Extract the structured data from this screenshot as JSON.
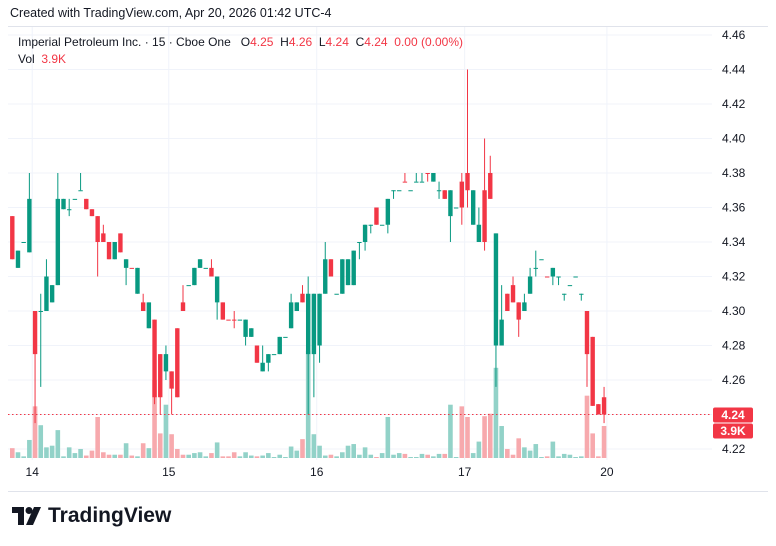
{
  "header": {
    "created": "Created with TradingView.com, Apr 20, 2026 01:42 UTC-4"
  },
  "legend": {
    "symbol": "Imperial Petroleum Inc. · 15 · Cboe One",
    "o_label": "O",
    "o": "4.25",
    "h_label": "H",
    "h": "4.26",
    "l_label": "L",
    "l": "4.24",
    "c_label": "C",
    "c": "4.24",
    "change": "0.00 (0.00%)",
    "vol_label": "Vol",
    "vol": "3.9K"
  },
  "price_axis": [
    "4.46",
    "4.44",
    "4.42",
    "4.40",
    "4.38",
    "4.36",
    "4.34",
    "4.32",
    "4.30",
    "4.28",
    "4.26",
    "4.24",
    "4.22"
  ],
  "last_price_label": "4.24",
  "last_volume_label": "3.9K",
  "time_axis": [
    {
      "label": "14",
      "index": 4
    },
    {
      "label": "15",
      "index": 28
    },
    {
      "label": "16",
      "index": 54
    },
    {
      "label": "17",
      "index": 80
    },
    {
      "label": "20",
      "index": 105
    }
  ],
  "brand": "TradingView",
  "colors": {
    "up": "#089981",
    "down": "#f23645",
    "up_vol": "#92d2c8",
    "down_vol": "#f7a9ad"
  },
  "chart_data": {
    "type": "candlestick",
    "interval": "15",
    "ylim": [
      4.22,
      4.46
    ],
    "last_price": 4.24,
    "dir": "duuuduuuuuuuudddddududududduddduuuududdduuuduuuuuuuduuuuduuuuuuuduuuuduuuduuduudduudduuddduuuuduuuuuudddd",
    "ohlc": [
      [
        4.355,
        4.355,
        4.33,
        4.33
      ],
      [
        4.325,
        4.335,
        4.325,
        4.335
      ],
      [
        4.34,
        4.34,
        4.34,
        4.34
      ],
      [
        4.334,
        4.38,
        4.334,
        4.365
      ],
      [
        4.3,
        4.3,
        4.235,
        4.275
      ],
      [
        4.3,
        4.31,
        4.256,
        4.3
      ],
      [
        4.3,
        4.33,
        4.3,
        4.32
      ],
      [
        4.305,
        4.315,
        4.305,
        4.315
      ],
      [
        4.315,
        4.38,
        4.315,
        4.365
      ],
      [
        4.359,
        4.365,
        4.359,
        4.365
      ],
      [
        4.359,
        4.365,
        4.355,
        4.359
      ],
      [
        4.365,
        4.365,
        4.365,
        4.365
      ],
      [
        4.37,
        4.38,
        4.37,
        4.37
      ],
      [
        4.365,
        4.365,
        4.359,
        4.359
      ],
      [
        4.359,
        4.359,
        4.355,
        4.355
      ],
      [
        4.355,
        4.355,
        4.32,
        4.34
      ],
      [
        4.345,
        4.35,
        4.34,
        4.34
      ],
      [
        4.34,
        4.34,
        4.33,
        4.33
      ],
      [
        4.33,
        4.34,
        4.33,
        4.34
      ],
      [
        4.345,
        4.345,
        4.334,
        4.334
      ],
      [
        4.33,
        4.33,
        4.315,
        4.325
      ],
      [
        4.325,
        4.325,
        4.325,
        4.325
      ],
      [
        4.325,
        4.325,
        4.31,
        4.31
      ],
      [
        4.3,
        4.31,
        4.3,
        4.305
      ],
      [
        4.305,
        4.305,
        4.29,
        4.29
      ],
      [
        4.295,
        4.295,
        4.246,
        4.25
      ],
      [
        4.25,
        4.275,
        4.24,
        4.275
      ],
      [
        4.275,
        4.28,
        4.26,
        4.265
      ],
      [
        4.265,
        4.265,
        4.24,
        4.255
      ],
      [
        4.25,
        4.29,
        4.25,
        4.29
      ],
      [
        4.3,
        4.315,
        4.3,
        4.305
      ],
      [
        4.315,
        4.315,
        4.315,
        4.315
      ],
      [
        4.315,
        4.325,
        4.315,
        4.325
      ],
      [
        4.33,
        4.33,
        4.325,
        4.325
      ],
      [
        4.325,
        4.325,
        4.325,
        4.325
      ],
      [
        4.325,
        4.33,
        4.32,
        4.32
      ],
      [
        4.32,
        4.32,
        4.295,
        4.305
      ],
      [
        4.305,
        4.305,
        4.295,
        4.295
      ],
      [
        4.295,
        4.295,
        4.295,
        4.295
      ],
      [
        4.295,
        4.3,
        4.29,
        4.295
      ],
      [
        4.295,
        4.295,
        4.295,
        4.295
      ],
      [
        4.295,
        4.295,
        4.28,
        4.285
      ],
      [
        4.285,
        4.29,
        4.285,
        4.29
      ],
      [
        4.28,
        4.28,
        4.27,
        4.27
      ],
      [
        4.265,
        4.28,
        4.265,
        4.27
      ],
      [
        4.27,
        4.275,
        4.265,
        4.275
      ],
      [
        4.275,
        4.275,
        4.275,
        4.275
      ],
      [
        4.275,
        4.285,
        4.275,
        4.285
      ],
      [
        4.285,
        4.285,
        4.285,
        4.285
      ],
      [
        4.29,
        4.31,
        4.29,
        4.305
      ],
      [
        4.305,
        4.305,
        4.3,
        4.3
      ],
      [
        4.305,
        4.315,
        4.305,
        4.31
      ],
      [
        4.31,
        4.32,
        4.24,
        4.275
      ],
      [
        4.275,
        4.31,
        4.25,
        4.31
      ],
      [
        4.28,
        4.31,
        4.27,
        4.31
      ],
      [
        4.31,
        4.34,
        4.31,
        4.33
      ],
      [
        4.33,
        4.33,
        4.32,
        4.32
      ],
      [
        4.31,
        4.31,
        4.31,
        4.31
      ],
      [
        4.31,
        4.33,
        4.31,
        4.33
      ],
      [
        4.33,
        4.33,
        4.315,
        4.315
      ],
      [
        4.315,
        4.335,
        4.315,
        4.335
      ],
      [
        4.34,
        4.34,
        4.33,
        4.34
      ],
      [
        4.34,
        4.35,
        4.335,
        4.35
      ],
      [
        4.35,
        4.35,
        4.345,
        4.35
      ],
      [
        4.35,
        4.36,
        4.35,
        4.36
      ],
      [
        4.35,
        4.35,
        4.35,
        4.35
      ],
      [
        4.35,
        4.365,
        4.345,
        4.365
      ],
      [
        4.37,
        4.37,
        4.365,
        4.37
      ],
      [
        4.37,
        4.37,
        4.37,
        4.37
      ],
      [
        4.375,
        4.38,
        4.375,
        4.375
      ],
      [
        4.37,
        4.37,
        4.37,
        4.37
      ],
      [
        4.375,
        4.38,
        4.375,
        4.375
      ],
      [
        4.375,
        4.38,
        4.375,
        4.375
      ],
      [
        4.38,
        4.38,
        4.375,
        4.38
      ],
      [
        4.38,
        4.38,
        4.375,
        4.375
      ],
      [
        4.37,
        4.375,
        4.365,
        4.37
      ],
      [
        4.365,
        4.37,
        4.365,
        4.37
      ],
      [
        4.37,
        4.37,
        4.34,
        4.355
      ],
      [
        4.36,
        4.36,
        4.36,
        4.36
      ],
      [
        4.36,
        4.38,
        4.35,
        4.375
      ],
      [
        4.38,
        4.44,
        4.36,
        4.37
      ],
      [
        4.37,
        4.37,
        4.35,
        4.35
      ],
      [
        4.34,
        4.36,
        4.34,
        4.35
      ],
      [
        4.34,
        4.4,
        4.335,
        4.37
      ],
      [
        4.38,
        4.39,
        4.365,
        4.365
      ],
      [
        4.345,
        4.345,
        4.256,
        4.28
      ],
      [
        4.28,
        4.315,
        4.28,
        4.295
      ],
      [
        4.3,
        4.31,
        4.3,
        4.31
      ],
      [
        4.315,
        4.32,
        4.305,
        4.305
      ],
      [
        4.305,
        4.305,
        4.285,
        4.295
      ],
      [
        4.3,
        4.31,
        4.3,
        4.305
      ],
      [
        4.31,
        4.325,
        4.31,
        4.32
      ],
      [
        4.325,
        4.335,
        4.32,
        4.325
      ],
      [
        4.33,
        4.33,
        4.33,
        4.33
      ],
      [
        4.32,
        4.32,
        4.32,
        4.32
      ],
      [
        4.32,
        4.325,
        4.315,
        4.325
      ],
      [
        4.32,
        4.32,
        4.315,
        4.32
      ],
      [
        4.31,
        4.31,
        4.306,
        4.31
      ],
      [
        4.315,
        4.315,
        4.315,
        4.315
      ],
      [
        4.32,
        4.32,
        4.32,
        4.32
      ],
      [
        4.31,
        4.31,
        4.306,
        4.31
      ],
      [
        4.3,
        4.3,
        4.256,
        4.275
      ],
      [
        4.285,
        4.285,
        4.245,
        4.245
      ],
      [
        4.246,
        4.246,
        4.24,
        4.24
      ],
      [
        4.25,
        4.256,
        4.235,
        4.24
      ]
    ],
    "volume_k": [
      1.2,
      0.7,
      0.2,
      2.2,
      6.3,
      4.0,
      1.3,
      1.5,
      3.4,
      0.2,
      1.3,
      0.6,
      1.1,
      0.3,
      0.9,
      5.0,
      0.7,
      0.4,
      0.4,
      0.4,
      1.8,
      0.3,
      0.2,
      1.8,
      1.2,
      9.5,
      3.0,
      6.5,
      2.9,
      1.1,
      0.4,
      0.4,
      0.6,
      0.7,
      0.2,
      0.6,
      1.9,
      0.2,
      0.2,
      0.7,
      0.2,
      0.7,
      0.3,
      0.2,
      0.3,
      0.6,
      0.1,
      0.4,
      0.1,
      1.4,
      0.9,
      2.3,
      13.1,
      2.9,
      1.5,
      0.3,
      0.4,
      0.2,
      0.7,
      1.5,
      1.7,
      0.4,
      1.3,
      0.4,
      0.1,
      0.6,
      5.0,
      0.4,
      0.6,
      0.5,
      0.1,
      0.1,
      0.5,
      0.4,
      0.2,
      0.5,
      0.5,
      6.5,
      0.1,
      6.3,
      5.0,
      0.6,
      2.0,
      5.1,
      5.4,
      11.0,
      3.9,
      1.1,
      0.4,
      2.4,
      1.3,
      0.9,
      1.7,
      0.1,
      0.2,
      2.0,
      0.2,
      0.5,
      0.4,
      0.1,
      0.2,
      7.6,
      3.0,
      0.2,
      3.9
    ]
  }
}
